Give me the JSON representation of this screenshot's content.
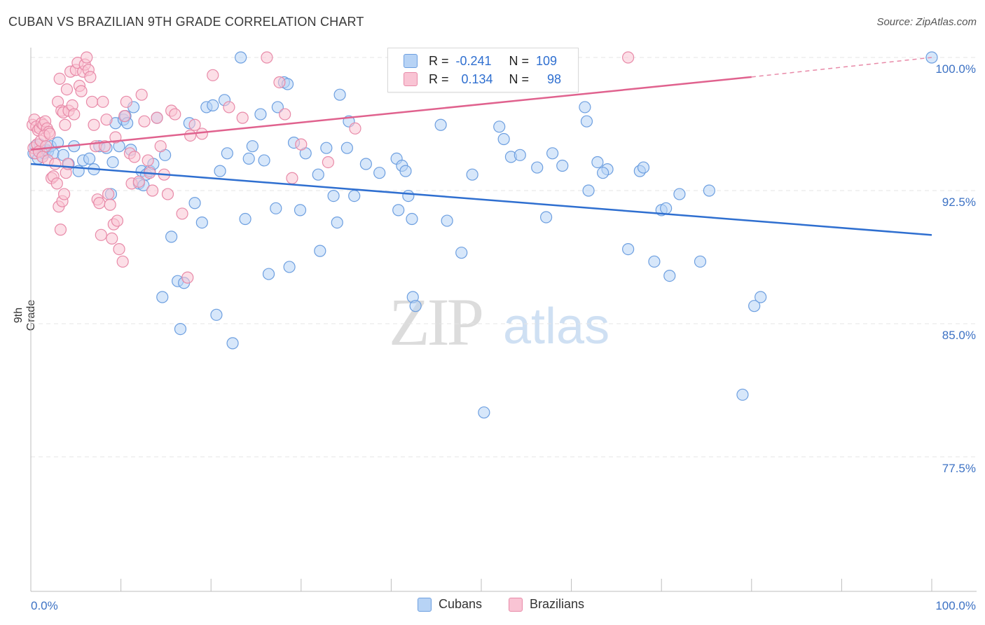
{
  "header": {
    "title": "CUBAN VS BRAZILIAN 9TH GRADE CORRELATION CHART",
    "source": "Source: ZipAtlas.com"
  },
  "legend": {
    "rows": [
      {
        "r_label": "R =",
        "r_value": "-0.241",
        "n_label": "N =",
        "n_value": "109",
        "color": "#a8c8f0",
        "border": "#6d9fe0"
      },
      {
        "r_label": "R =",
        "r_value": "0.134",
        "n_label": "N =",
        "n_value": "98",
        "color": "#f7b8cc",
        "border": "#e88aa8"
      }
    ],
    "bottom": [
      {
        "label": "Cubans",
        "color": "#b7d3f5",
        "border": "#6d9fe0"
      },
      {
        "label": "Brazilians",
        "color": "#f9c4d4",
        "border": "#e88aa8"
      }
    ]
  },
  "watermark": {
    "zip": "ZIP",
    "atlas": "atlas"
  },
  "chart_data": {
    "type": "scatter",
    "title": "CUBAN VS BRAZILIAN 9TH GRADE CORRELATION CHART",
    "xlabel": "",
    "ylabel": "9th Grade",
    "xlim": [
      0,
      100
    ],
    "ylim": [
      70.0,
      100.5
    ],
    "x_tick_labels": [
      "0.0%",
      "100.0%"
    ],
    "y_ticks": [
      100.0,
      92.5,
      85.0,
      77.5
    ],
    "y_tick_labels": [
      "100.0%",
      "92.5%",
      "85.0%",
      "77.5%"
    ],
    "grid": true,
    "legend_position": "top-center",
    "series": [
      {
        "name": "Cubans",
        "color": "#6d9fe0",
        "fill": "#b7d3f5",
        "trend": {
          "x": [
            0,
            100
          ],
          "y": [
            94.0,
            90.0
          ]
        },
        "points": [
          [
            0.3,
            94.6
          ],
          [
            0.5,
            95.0
          ],
          [
            0.8,
            94.3
          ],
          [
            1.0,
            95.1
          ],
          [
            1.3,
            94.4
          ],
          [
            1.5,
            94.6
          ],
          [
            1.7,
            94.8
          ],
          [
            1.9,
            94.7
          ],
          [
            2.2,
            95.0
          ],
          [
            2.5,
            94.6
          ],
          [
            3.0,
            95.2
          ],
          [
            3.6,
            94.5
          ],
          [
            4.2,
            94.0
          ],
          [
            4.8,
            95.0
          ],
          [
            5.3,
            93.6
          ],
          [
            5.8,
            94.2
          ],
          [
            6.5,
            94.3
          ],
          [
            7.0,
            93.7
          ],
          [
            7.6,
            95.0
          ],
          [
            8.4,
            94.9
          ],
          [
            8.9,
            92.3
          ],
          [
            9.1,
            94.1
          ],
          [
            9.4,
            96.3
          ],
          [
            9.8,
            95.0
          ],
          [
            10.3,
            96.5
          ],
          [
            10.5,
            96.7
          ],
          [
            10.7,
            96.3
          ],
          [
            11.1,
            94.8
          ],
          [
            11.4,
            97.2
          ],
          [
            12.0,
            92.9
          ],
          [
            12.3,
            93.6
          ],
          [
            12.5,
            92.8
          ],
          [
            12.8,
            93.4
          ],
          [
            13.2,
            93.6
          ],
          [
            13.6,
            94.0
          ],
          [
            14.0,
            96.6
          ],
          [
            14.6,
            86.5
          ],
          [
            14.9,
            94.5
          ],
          [
            15.6,
            89.9
          ],
          [
            16.3,
            87.4
          ],
          [
            16.6,
            84.7
          ],
          [
            17.0,
            87.3
          ],
          [
            17.6,
            96.3
          ],
          [
            18.2,
            91.8
          ],
          [
            19.0,
            90.7
          ],
          [
            19.5,
            97.2
          ],
          [
            20.2,
            97.3
          ],
          [
            20.6,
            85.5
          ],
          [
            21.0,
            93.6
          ],
          [
            21.5,
            97.6
          ],
          [
            21.8,
            94.6
          ],
          [
            22.4,
            83.9
          ],
          [
            23.3,
            100.0
          ],
          [
            23.8,
            90.9
          ],
          [
            24.2,
            94.3
          ],
          [
            24.6,
            95.0
          ],
          [
            25.5,
            96.8
          ],
          [
            25.9,
            94.2
          ],
          [
            26.4,
            87.8
          ],
          [
            27.2,
            91.5
          ],
          [
            27.4,
            97.2
          ],
          [
            28.1,
            98.6
          ],
          [
            28.5,
            98.5
          ],
          [
            28.7,
            88.2
          ],
          [
            29.2,
            95.2
          ],
          [
            29.9,
            91.4
          ],
          [
            30.5,
            94.6
          ],
          [
            31.9,
            93.4
          ],
          [
            32.1,
            89.1
          ],
          [
            32.8,
            94.9
          ],
          [
            33.6,
            92.2
          ],
          [
            34.0,
            90.7
          ],
          [
            34.3,
            97.9
          ],
          [
            35.1,
            94.9
          ],
          [
            35.3,
            96.4
          ],
          [
            35.9,
            92.2
          ],
          [
            37.2,
            94.0
          ],
          [
            38.7,
            93.5
          ],
          [
            40.6,
            94.3
          ],
          [
            40.8,
            91.4
          ],
          [
            41.2,
            93.9
          ],
          [
            41.6,
            93.6
          ],
          [
            41.9,
            92.2
          ],
          [
            42.3,
            90.9
          ],
          [
            42.4,
            86.5
          ],
          [
            42.7,
            86.0
          ],
          [
            45.5,
            96.2
          ],
          [
            46.2,
            90.8
          ],
          [
            47.8,
            89.0
          ],
          [
            49.0,
            93.4
          ],
          [
            50.3,
            80.0
          ],
          [
            52.0,
            96.1
          ],
          [
            52.5,
            95.4
          ],
          [
            53.3,
            94.4
          ],
          [
            54.3,
            94.5
          ],
          [
            56.2,
            93.8
          ],
          [
            57.2,
            91.0
          ],
          [
            57.9,
            94.6
          ],
          [
            59.0,
            93.9
          ],
          [
            61.5,
            97.2
          ],
          [
            61.7,
            96.4
          ],
          [
            61.9,
            92.5
          ],
          [
            62.9,
            94.1
          ],
          [
            64.0,
            93.7
          ],
          [
            66.3,
            89.2
          ],
          [
            67.6,
            93.6
          ],
          [
            69.2,
            88.5
          ],
          [
            70.0,
            91.4
          ],
          [
            70.9,
            87.7
          ]
        ],
        "extra_points": [
          [
            75.3,
            92.5
          ],
          [
            74.3,
            88.5
          ],
          [
            80.3,
            86.0
          ],
          [
            81.0,
            86.5
          ],
          [
            79.0,
            81.0
          ],
          [
            100.0,
            100.0
          ],
          [
            68.0,
            93.8
          ],
          [
            70.5,
            91.5
          ],
          [
            63.5,
            93.5
          ],
          [
            72.0,
            92.3
          ]
        ]
      },
      {
        "name": "Brazilians",
        "color": "#e88aa8",
        "fill": "#f9c4d4",
        "trend": {
          "x": [
            0,
            80
          ],
          "y": [
            94.8,
            98.9
          ]
        },
        "trend_dashed": {
          "x": [
            80,
            100
          ],
          "y": [
            98.9,
            100.0
          ]
        },
        "points": [
          [
            0.2,
            96.2
          ],
          [
            0.4,
            96.5
          ],
          [
            0.6,
            96.1
          ],
          [
            0.8,
            95.9
          ],
          [
            1.0,
            96.0
          ],
          [
            1.2,
            96.3
          ],
          [
            1.4,
            96.2
          ],
          [
            1.6,
            96.4
          ],
          [
            1.8,
            96.0
          ],
          [
            2.0,
            95.8
          ],
          [
            0.3,
            94.9
          ],
          [
            0.5,
            94.6
          ],
          [
            0.7,
            95.1
          ],
          [
            0.9,
            94.7
          ],
          [
            1.1,
            95.3
          ],
          [
            1.3,
            94.4
          ],
          [
            1.5,
            95.6
          ],
          [
            1.7,
            95.0
          ],
          [
            1.9,
            94.2
          ],
          [
            2.1,
            95.7
          ],
          [
            2.3,
            93.2
          ],
          [
            2.5,
            93.3
          ],
          [
            2.7,
            94.0
          ],
          [
            2.9,
            92.9
          ],
          [
            3.1,
            91.6
          ],
          [
            3.3,
            90.3
          ],
          [
            3.5,
            91.9
          ],
          [
            3.7,
            92.3
          ],
          [
            3.9,
            93.5
          ],
          [
            4.1,
            94.0
          ],
          [
            3.0,
            97.5
          ],
          [
            3.2,
            98.8
          ],
          [
            3.4,
            97.0
          ],
          [
            3.6,
            96.9
          ],
          [
            3.8,
            96.2
          ],
          [
            4.0,
            98.2
          ],
          [
            4.2,
            97.0
          ],
          [
            4.4,
            99.2
          ],
          [
            4.6,
            97.3
          ],
          [
            4.8,
            96.8
          ],
          [
            5.0,
            99.3
          ],
          [
            5.2,
            99.7
          ],
          [
            5.4,
            98.4
          ],
          [
            5.6,
            98.1
          ],
          [
            5.8,
            99.2
          ],
          [
            6.0,
            99.6
          ],
          [
            6.2,
            100.0
          ],
          [
            6.4,
            99.3
          ],
          [
            6.6,
            98.9
          ],
          [
            6.8,
            97.5
          ],
          [
            7.0,
            96.2
          ],
          [
            7.2,
            95.0
          ],
          [
            7.4,
            92.0
          ],
          [
            7.6,
            91.8
          ],
          [
            7.8,
            90.0
          ],
          [
            8.0,
            97.5
          ],
          [
            8.2,
            95.0
          ],
          [
            8.4,
            96.5
          ],
          [
            8.6,
            92.3
          ],
          [
            8.8,
            91.7
          ],
          [
            9.0,
            89.8
          ],
          [
            9.2,
            90.6
          ],
          [
            9.4,
            95.5
          ],
          [
            9.6,
            90.8
          ],
          [
            9.8,
            89.2
          ],
          [
            10.2,
            88.5
          ],
          [
            10.4,
            96.7
          ],
          [
            10.6,
            97.5
          ],
          [
            11.0,
            94.6
          ],
          [
            11.2,
            92.9
          ],
          [
            11.5,
            94.4
          ],
          [
            12.0,
            93.0
          ],
          [
            12.3,
            97.9
          ],
          [
            12.6,
            96.4
          ],
          [
            13.0,
            94.2
          ],
          [
            13.2,
            93.5
          ],
          [
            13.5,
            92.5
          ],
          [
            14.0,
            96.6
          ],
          [
            14.4,
            95.0
          ],
          [
            14.8,
            93.4
          ],
          [
            15.2,
            92.3
          ],
          [
            15.6,
            97.0
          ],
          [
            16.0,
            96.8
          ],
          [
            16.8,
            91.2
          ],
          [
            17.4,
            87.6
          ],
          [
            17.7,
            95.6
          ],
          [
            18.2,
            96.2
          ],
          [
            19.0,
            95.7
          ],
          [
            20.2,
            99.0
          ],
          [
            22.0,
            97.2
          ],
          [
            23.5,
            96.6
          ],
          [
            26.2,
            100.0
          ],
          [
            27.6,
            98.6
          ],
          [
            28.2,
            96.8
          ],
          [
            29.0,
            93.2
          ],
          [
            30.0,
            95.1
          ],
          [
            33.0,
            94.1
          ],
          [
            36.0,
            96.0
          ]
        ],
        "extra_points": [
          [
            66.3,
            100.0
          ]
        ]
      }
    ]
  }
}
